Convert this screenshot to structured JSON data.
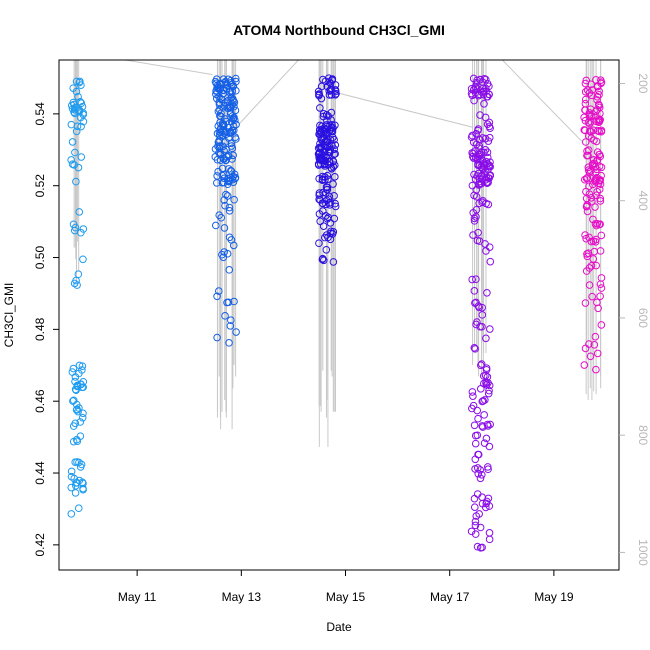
{
  "chart_data": {
    "type": "scatter",
    "title": "ATOM4 Northbound CH3Cl_GMI",
    "xlabel": "Date",
    "ylabel": "CH3Cl_GMI",
    "x_tick_labels": [
      "May 11",
      "May 13",
      "May 15",
      "May 17",
      "May 19"
    ],
    "x_tick_positions_day": [
      11,
      13,
      15,
      17,
      19
    ],
    "xlim_day": [
      9.5,
      20.25
    ],
    "ylim": [
      0.413,
      0.555
    ],
    "y_ticks": [
      0.42,
      0.44,
      0.46,
      0.48,
      0.5,
      0.52,
      0.54
    ],
    "y_tick_labels": [
      "0.42",
      "0.44",
      "0.46",
      "0.48",
      "0.50",
      "0.52",
      "0.54"
    ],
    "secondary_axis": {
      "side": "right",
      "label": "",
      "range": [
        1030,
        160
      ],
      "ticks": [
        200,
        400,
        600,
        800,
        1000
      ],
      "tick_labels": [
        "200",
        "400",
        "600",
        "800",
        "1000"
      ],
      "color": "#b8b8b8"
    },
    "grid": false,
    "legend": "none",
    "series": [
      {
        "color": "#1e9bf0",
        "center_day": 9.85,
        "x_spread": 0.12,
        "groups": [
          {
            "lo": 0.535,
            "hi": 0.55,
            "n": 30
          },
          {
            "lo": 0.52,
            "hi": 0.535,
            "n": 8
          },
          {
            "lo": 0.505,
            "hi": 0.52,
            "n": 6
          },
          {
            "lo": 0.485,
            "hi": 0.505,
            "n": 5
          },
          {
            "lo": 0.463,
            "hi": 0.47,
            "n": 18
          },
          {
            "lo": 0.448,
            "hi": 0.463,
            "n": 16
          },
          {
            "lo": 0.428,
            "hi": 0.445,
            "n": 20
          }
        ]
      },
      {
        "color": "#1560e6",
        "center_day": 12.7,
        "x_spread": 0.2,
        "groups": [
          {
            "lo": 0.545,
            "hi": 0.55,
            "n": 40
          },
          {
            "lo": 0.53,
            "hi": 0.545,
            "n": 80
          },
          {
            "lo": 0.52,
            "hi": 0.53,
            "n": 40
          },
          {
            "lo": 0.505,
            "hi": 0.52,
            "n": 12
          },
          {
            "lo": 0.49,
            "hi": 0.505,
            "n": 8
          },
          {
            "lo": 0.474,
            "hi": 0.49,
            "n": 10
          }
        ]
      },
      {
        "color": "#2a10e0",
        "center_day": 14.65,
        "x_spread": 0.17,
        "groups": [
          {
            "lo": 0.545,
            "hi": 0.55,
            "n": 25
          },
          {
            "lo": 0.535,
            "hi": 0.545,
            "n": 15
          },
          {
            "lo": 0.525,
            "hi": 0.537,
            "n": 90
          },
          {
            "lo": 0.515,
            "hi": 0.525,
            "n": 30
          },
          {
            "lo": 0.505,
            "hi": 0.515,
            "n": 20
          },
          {
            "lo": 0.498,
            "hi": 0.505,
            "n": 6
          }
        ]
      },
      {
        "color": "#8a0ee8",
        "center_day": 17.6,
        "x_spread": 0.18,
        "groups": [
          {
            "lo": 0.545,
            "hi": 0.55,
            "n": 30
          },
          {
            "lo": 0.53,
            "hi": 0.545,
            "n": 25
          },
          {
            "lo": 0.52,
            "hi": 0.53,
            "n": 60
          },
          {
            "lo": 0.5,
            "hi": 0.52,
            "n": 20
          },
          {
            "lo": 0.47,
            "hi": 0.5,
            "n": 20
          },
          {
            "lo": 0.455,
            "hi": 0.47,
            "n": 25
          },
          {
            "lo": 0.44,
            "hi": 0.455,
            "n": 20
          },
          {
            "lo": 0.418,
            "hi": 0.44,
            "n": 25
          }
        ]
      },
      {
        "color": "#e60fc8",
        "center_day": 19.75,
        "x_spread": 0.17,
        "groups": [
          {
            "lo": 0.54,
            "hi": 0.55,
            "n": 30
          },
          {
            "lo": 0.52,
            "hi": 0.54,
            "n": 70
          },
          {
            "lo": 0.5,
            "hi": 0.52,
            "n": 35
          },
          {
            "lo": 0.48,
            "hi": 0.5,
            "n": 15
          },
          {
            "lo": 0.468,
            "hi": 0.48,
            "n": 8
          }
        ]
      }
    ],
    "flight_track": {
      "color": "#c8c8c8",
      "vertical_profiles": [
        {
          "center_day": 9.85,
          "x_spread": 0.06,
          "n": 6,
          "top": 160,
          "bottom": [
            480,
            470,
            520,
            500,
            540
          ]
        },
        {
          "center_day": 12.7,
          "x_spread": 0.2,
          "n": 16,
          "top": 160,
          "bottom": [
            700,
            760,
            770,
            790,
            760,
            720,
            680,
            740,
            770,
            750
          ]
        },
        {
          "center_day": 14.65,
          "x_spread": 0.16,
          "n": 14,
          "top": 160,
          "bottom": [
            690,
            750,
            820,
            760,
            760,
            700,
            740,
            770
          ]
        },
        {
          "center_day": 17.6,
          "x_spread": 0.18,
          "n": 12,
          "top": 160,
          "bottom": [
            640,
            660,
            690,
            680,
            700,
            650
          ]
        },
        {
          "center_day": 19.75,
          "x_spread": 0.15,
          "n": 10,
          "top": 160,
          "bottom": [
            670,
            720,
            740,
            730,
            700,
            725
          ]
        }
      ],
      "transits": [
        [
          [
            10.1,
            150
          ],
          [
            12.45,
            185
          ]
        ],
        [
          [
            12.95,
            270
          ],
          [
            14.2,
            150
          ]
        ],
        [
          [
            14.8,
            215
          ],
          [
            17.45,
            275
          ]
        ],
        [
          [
            17.9,
            150
          ],
          [
            19.55,
            300
          ]
        ]
      ]
    }
  }
}
